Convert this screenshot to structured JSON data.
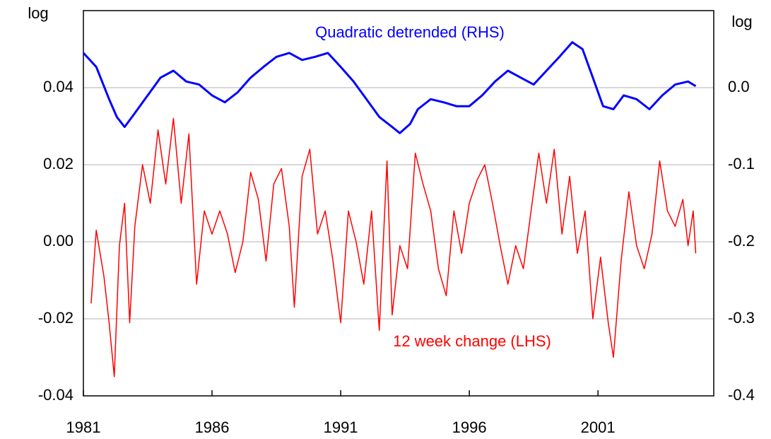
{
  "chart_data": {
    "type": "line",
    "ylabel": "log",
    "y2label": "log",
    "xlim": [
      1981,
      2005.5
    ],
    "xticks": [
      1981,
      1986,
      1991,
      1996,
      2001
    ],
    "ylim": [
      -0.04,
      0.06
    ],
    "yticks": [
      {
        "value": -0.04,
        "label": "-0.04"
      },
      {
        "value": -0.02,
        "label": "-0.02"
      },
      {
        "value": 0,
        "label": "0.00"
      },
      {
        "value": 0.02,
        "label": "0.02"
      },
      {
        "value": 0.04,
        "label": "0.04"
      }
    ],
    "y2lim": [
      -0.4,
      0.1
    ],
    "y2ticks": [
      {
        "value": -0.4,
        "label": "-0.4"
      },
      {
        "value": -0.3,
        "label": "-0.3"
      },
      {
        "value": -0.2,
        "label": "-0.2"
      },
      {
        "value": -0.1,
        "label": "-0.1"
      },
      {
        "value": 0,
        "label": "0.0"
      }
    ],
    "grid": true,
    "series": [
      {
        "name": "12 week change (LHS)",
        "color": "#ff0000",
        "x": [
          1981.3,
          1981.5,
          1981.8,
          1982.0,
          1982.2,
          1982.4,
          1982.6,
          1982.8,
          1983.0,
          1983.3,
          1983.6,
          1983.9,
          1984.2,
          1984.5,
          1984.8,
          1985.1,
          1985.4,
          1985.7,
          1986.0,
          1986.3,
          1986.6,
          1986.9,
          1987.2,
          1987.5,
          1987.8,
          1988.1,
          1988.4,
          1988.7,
          1989.0,
          1989.2,
          1989.5,
          1989.8,
          1990.1,
          1990.4,
          1990.7,
          1991.0,
          1991.3,
          1991.6,
          1991.9,
          1992.2,
          1992.5,
          1992.8,
          1993.0,
          1993.3,
          1993.6,
          1993.9,
          1994.2,
          1994.5,
          1994.8,
          1995.1,
          1995.4,
          1995.7,
          1996.0,
          1996.3,
          1996.6,
          1996.9,
          1997.2,
          1997.5,
          1997.8,
          1998.1,
          1998.4,
          1998.7,
          1999.0,
          1999.3,
          1999.6,
          1999.9,
          2000.2,
          2000.5,
          2000.8,
          2001.1,
          2001.4,
          2001.6,
          2001.9,
          2002.2,
          2002.5,
          2002.8,
          2003.1,
          2003.4,
          2003.7,
          2004.0,
          2004.3,
          2004.5,
          2004.7,
          2004.8
        ],
        "values": [
          -0.016,
          0.003,
          -0.009,
          -0.021,
          -0.035,
          -0.001,
          0.01,
          -0.021,
          0.004,
          0.02,
          0.01,
          0.029,
          0.015,
          0.032,
          0.01,
          0.028,
          -0.011,
          0.008,
          0.002,
          0.008,
          0.002,
          -0.008,
          0.0,
          0.018,
          0.011,
          -0.005,
          0.015,
          0.019,
          0.004,
          -0.017,
          0.017,
          0.024,
          0.002,
          0.008,
          -0.005,
          -0.021,
          0.008,
          0.0,
          -0.011,
          0.008,
          -0.023,
          0.021,
          -0.019,
          -0.001,
          -0.007,
          0.023,
          0.015,
          0.008,
          -0.007,
          -0.014,
          0.008,
          -0.003,
          0.01,
          0.016,
          0.02,
          0.01,
          -0.001,
          -0.011,
          -0.001,
          -0.007,
          0.008,
          0.023,
          0.01,
          0.024,
          0.002,
          0.017,
          -0.003,
          0.008,
          -0.02,
          -0.004,
          -0.021,
          -0.03,
          -0.005,
          0.013,
          -0.001,
          -0.007,
          0.002,
          0.021,
          0.008,
          0.004,
          0.011,
          -0.001,
          0.008,
          -0.003
        ]
      },
      {
        "name": "Quadratic detrended (RHS)",
        "color": "#0000ff",
        "axis": "y2",
        "x": [
          1981.0,
          1981.5,
          1982.0,
          1982.3,
          1982.6,
          1983.0,
          1983.5,
          1984.0,
          1984.5,
          1985.0,
          1985.5,
          1986.0,
          1986.5,
          1987.0,
          1987.5,
          1988.0,
          1988.5,
          1989.0,
          1989.5,
          1990.0,
          1990.5,
          1991.0,
          1991.5,
          1992.0,
          1992.5,
          1993.0,
          1993.3,
          1993.7,
          1994.0,
          1994.5,
          1995.0,
          1995.5,
          1996.0,
          1996.5,
          1997.0,
          1997.5,
          1998.0,
          1998.5,
          1999.0,
          1999.5,
          2000.0,
          2000.4,
          2000.8,
          2001.2,
          2001.6,
          2002.0,
          2002.5,
          2003.0,
          2003.5,
          2004.0,
          2004.5,
          2004.8
        ],
        "values": [
          0.045,
          0.027,
          -0.015,
          -0.038,
          -0.051,
          -0.033,
          -0.01,
          0.013,
          0.022,
          0.008,
          0.004,
          -0.01,
          -0.019,
          -0.006,
          0.013,
          0.027,
          0.04,
          0.045,
          0.036,
          0.04,
          0.045,
          0.027,
          0.008,
          -0.015,
          -0.038,
          -0.051,
          -0.059,
          -0.047,
          -0.028,
          -0.015,
          -0.019,
          -0.024,
          -0.024,
          -0.01,
          0.008,
          0.022,
          0.013,
          0.004,
          0.022,
          0.04,
          0.059,
          0.05,
          0.013,
          -0.024,
          -0.028,
          -0.01,
          -0.015,
          -0.028,
          -0.01,
          0.004,
          0.008,
          0.002
        ]
      }
    ]
  }
}
